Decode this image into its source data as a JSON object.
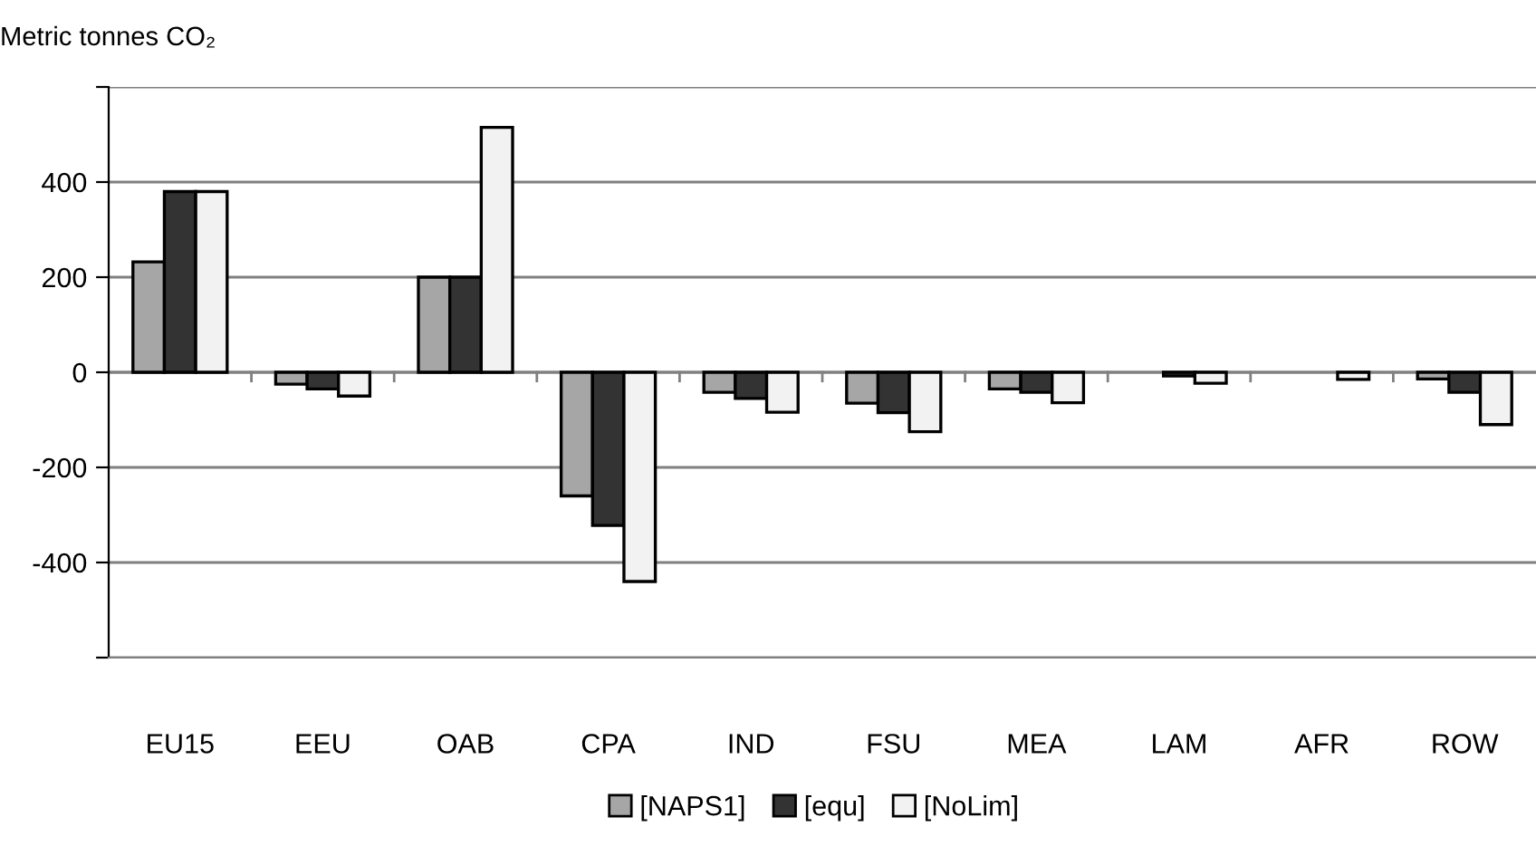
{
  "chart_data": {
    "type": "bar",
    "ylabel": "Metric tonnes CO₂",
    "categories": [
      "EU15",
      "EEU",
      "OAB",
      "CPA",
      "IND",
      "FSU",
      "MEA",
      "LAM",
      "AFR",
      "ROW"
    ],
    "series": [
      {
        "name": "[NAPS1]",
        "color": "#a6a6a6",
        "values": [
          232,
          -25,
          200,
          -260,
          -42,
          -65,
          -35,
          null,
          null,
          -14
        ]
      },
      {
        "name": "[equ]",
        "color": "#333333",
        "values": [
          380,
          -35,
          200,
          -322,
          -55,
          -85,
          -42,
          -8,
          null,
          -42
        ]
      },
      {
        "name": "[NoLim]",
        "color": "#f2f2f2",
        "values": [
          380,
          -50,
          515,
          -440,
          -84,
          -125,
          -64,
          -23,
          -15,
          -110
        ]
      }
    ],
    "ylim": [
      -600,
      600
    ],
    "yticks": [
      {
        "value": -600,
        "label": null
      },
      -400,
      -200,
      0,
      200,
      400,
      {
        "value": 600,
        "label": null
      }
    ],
    "grid": "y",
    "legend": "bottom"
  }
}
